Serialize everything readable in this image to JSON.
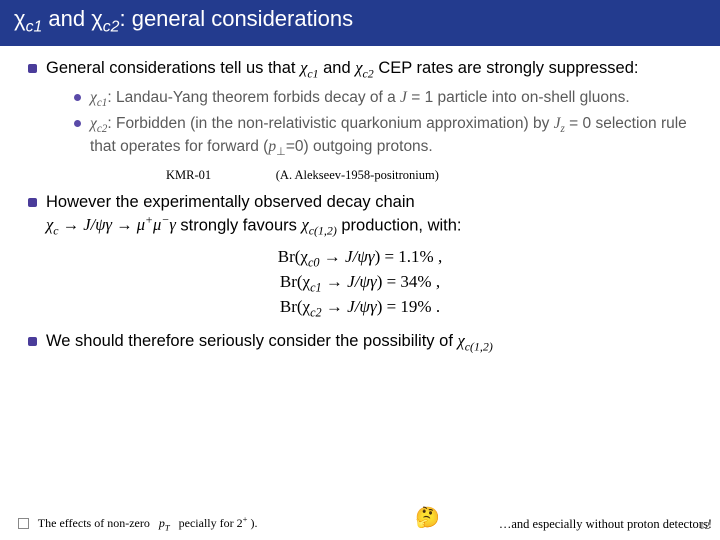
{
  "title": {
    "prefix_html": "χ<span class=\"subscr ital\">c1</span> and χ<span class=\"subscr ital\">c2</span>: general considerations"
  },
  "bullets": {
    "b1": "General considerations tell us that χc1 and χc2 CEP rates are strongly suppressed:",
    "b1_html": "General considerations tell us that <span class=\"serif ital\">χ<span class=\"subscr\">c1</span></span> and <span class=\"serif ital\">χ<span class=\"subscr\">c2</span></span> CEP rates are strongly suppressed:",
    "s1_html": "<span class=\"serif ital\">χ<span class=\"subscr\">c1</span></span>: Landau-Yang theorem forbids decay of a <span class=\"serif ital\">J</span> = 1 particle into on-shell gluons.",
    "s2_html": "<span class=\"serif ital\">χ<span class=\"subscr\">c2</span></span>: Forbidden (in the non-relativistic quarkonium approximation) by <span class=\"serif ital\">J<span class=\"subscr\">z</span></span> = 0 selection rule that operates for forward (<span class=\"serif ital\">p</span><span class=\"subscr\">⊥</span>=0) outgoing protons.",
    "annot_left": "KMR-01",
    "annot_right": "(A. Alekseev-1958-positronium)",
    "b2_html": "However the experimentally observed decay chain<br><span class=\"serif ital\">χ<span class=\"subscr\">c</span> → J/ψγ → μ<span class=\"supscr\">+</span>μ<span class=\"supscr\">−</span>γ</span> strongly favours <span class=\"serif ital\">χ<span class=\"subscr\">c(1,2)</span></span> production, with:",
    "br": [
      "Br(χ<span class=\"subscr ital\">c0</span> → <span class=\"ital\">J/ψγ</span>) = 1.1% ,",
      "Br(χ<span class=\"subscr ital\">c1</span> → <span class=\"ital\">J/ψγ</span>) = 34% ,",
      "Br(χ<span class=\"subscr ital\">c2</span> → <span class=\"ital\">J/ψγ</span>) = 19% ."
    ],
    "b3_html": "We should therefore seriously consider the possibility of <span class=\"serif ital\">χ<span class=\"subscr\">c(1,2)</span></span>"
  },
  "footer": {
    "left_html": "The effects of non-zero &nbsp; <span class=\"serif ital\">p<span class=\"subscr\">T</span></span> &nbsp; pecially for 2<span class=\"supscr\">+</span> ).",
    "right": "…and especially without proton detectors!",
    "emoji": "🤔",
    "page": "12"
  },
  "colors": {
    "title_bg": "#233b8e",
    "bullet": "#4a3c9a",
    "subtext": "#5a5a5a"
  }
}
